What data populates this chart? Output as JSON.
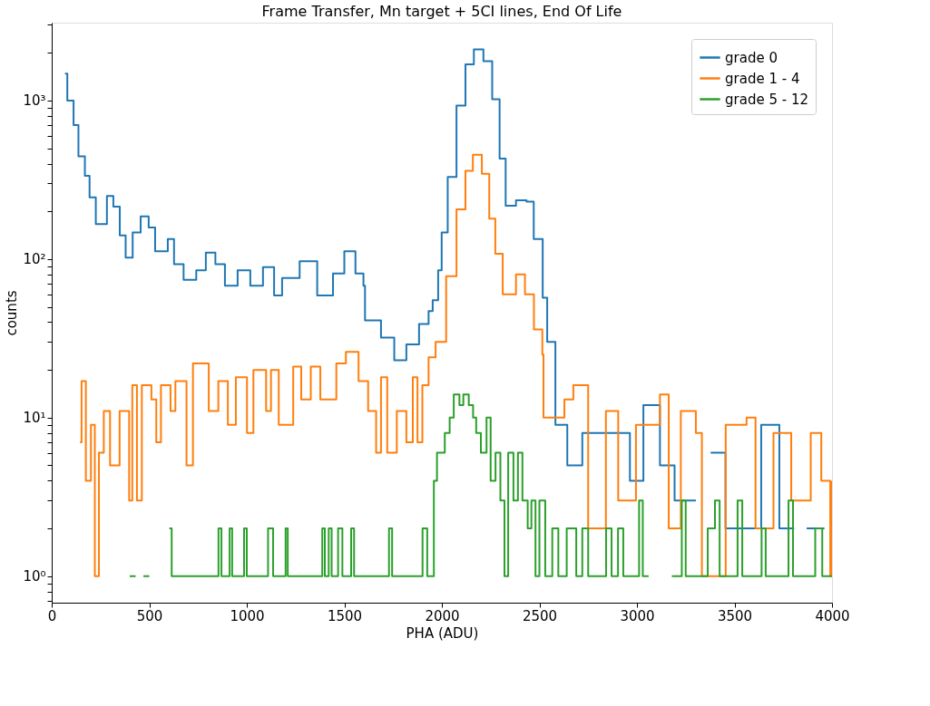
{
  "chart_data": {
    "type": "step",
    "title": "Frame Transfer, Mn target + 5CI lines, End Of Life",
    "xlabel": "PHA (ADU)",
    "ylabel": "counts",
    "log": "y",
    "grid": false,
    "legend": "top right",
    "line_style": "solid",
    "marker": "none",
    "xlim": [
      0,
      4000
    ],
    "xticks": [
      0,
      500,
      {
        "value": 1000,
        "label": "1000"
      },
      {
        "value": 1500,
        "label": "1500"
      },
      {
        "value": 2000,
        "label": "2000"
      },
      {
        "value": 2500,
        "label": "2500"
      },
      {
        "value": 3000,
        "label": "3000"
      },
      {
        "value": 3500,
        "label": "3500"
      },
      {
        "value": 4000,
        "label": "4000"
      }
    ],
    "ylim": [
      0.68,
      3100
    ],
    "yticks": [
      {
        "value": 0.7,
        "label": null
      },
      {
        "value": 0.8,
        "label": null
      },
      {
        "value": 0.9,
        "label": null
      },
      {
        "value": 1,
        "label": "10⁰"
      },
      {
        "value": 2,
        "label": null
      },
      {
        "value": 3,
        "label": null
      },
      {
        "value": 4,
        "label": null
      },
      {
        "value": 5,
        "label": null
      },
      {
        "value": 6,
        "label": null
      },
      {
        "value": 7,
        "label": null
      },
      {
        "value": 8,
        "label": null
      },
      {
        "value": 9,
        "label": null
      },
      {
        "value": 10,
        "label": "10¹"
      },
      {
        "value": 20,
        "label": null
      },
      {
        "value": 30,
        "label": null
      },
      {
        "value": 40,
        "label": null
      },
      {
        "value": 50,
        "label": null
      },
      {
        "value": 60,
        "label": null
      },
      {
        "value": 70,
        "label": null
      },
      {
        "value": 80,
        "label": null
      },
      {
        "value": 90,
        "label": null
      },
      {
        "value": 100,
        "label": "10²"
      },
      {
        "value": 200,
        "label": null
      },
      {
        "value": 300,
        "label": null
      },
      {
        "value": 400,
        "label": null
      },
      {
        "value": 500,
        "label": null
      },
      {
        "value": 600,
        "label": null
      },
      {
        "value": 700,
        "label": null
      },
      {
        "value": 800,
        "label": null
      },
      {
        "value": 900,
        "label": null
      },
      {
        "value": 1000,
        "label": "10³"
      },
      {
        "value": 2000,
        "label": null
      },
      {
        "value": 3000,
        "label": null
      }
    ],
    "series": [
      {
        "name": "grade 0",
        "color": "#1f77b4",
        "x": [
          68,
          80,
          112,
          137,
          170,
          194,
          226,
          283,
          316,
          349,
          379,
          415,
          456,
          497,
          530,
          595,
          627,
          676,
          741,
          790,
          839,
          888,
          953,
          1018,
          1083,
          1140,
          1181,
          1271,
          1361,
          1442,
          1500,
          1557,
          1598,
          1606,
          1688,
          1756,
          1818,
          1883,
          1932,
          1953,
          1981,
          1999,
          2030,
          2075,
          2121,
          2164,
          2213,
          2258,
          2296,
          2327,
          2380,
          2434,
          2471,
          2517,
          2540,
          2582,
          2643,
          2720,
          2964,
          3033,
          3118,
          3193,
          3302,
          3378,
          3454,
          3637,
          3730,
          3806,
          3870,
          3961
        ],
        "values": [
          1480,
          1000,
          700,
          445,
          335,
          245,
          166,
          250,
          214,
          141,
          102,
          147,
          186,
          158,
          112,
          134,
          93,
          74,
          85,
          110,
          93,
          68,
          85,
          68,
          89,
          59,
          76,
          97,
          59,
          81,
          112,
          81,
          68,
          41,
          32,
          23,
          29,
          39,
          47,
          55,
          85,
          147,
          330,
          930,
          1690,
          2100,
          1770,
          1020,
          430,
          217,
          235,
          230,
          134,
          57,
          30,
          9,
          5,
          8,
          4,
          12,
          5,
          3,
          null,
          6,
          2,
          9,
          2,
          null,
          2,
          2
        ]
      },
      {
        "name": "grade 1 - 4",
        "color": "#ff7f0e",
        "x": [
          145,
          153,
          175,
          201,
          221,
          242,
          267,
          299,
          348,
          397,
          413,
          437,
          462,
          511,
          536,
          560,
          609,
          634,
          691,
          724,
          756,
          805,
          854,
          903,
          944,
          1001,
          1034,
          1099,
          1124,
          1164,
          1238,
          1279,
          1328,
          1377,
          1459,
          1508,
          1573,
          1622,
          1663,
          1688,
          1720,
          1769,
          1818,
          1851,
          1875,
          1900,
          1932,
          1968,
          2022,
          2075,
          2121,
          2159,
          2205,
          2243,
          2274,
          2312,
          2380,
          2426,
          2472,
          2515,
          2521,
          2628,
          2674,
          2750,
          2841,
          2904,
          2995,
          3118,
          3163,
          3225,
          3302,
          3333,
          3455,
          3562,
          3608,
          3700,
          3791,
          3891,
          3945,
          3991,
          4000
        ],
        "values": [
          7,
          17,
          4,
          9,
          1,
          6,
          11,
          5,
          11,
          3,
          16,
          3,
          16,
          13,
          7,
          16,
          11,
          17,
          5,
          22,
          22,
          11,
          17,
          9,
          18,
          8,
          20,
          11,
          20,
          9,
          21,
          13,
          21,
          13,
          22,
          26,
          17,
          11,
          6,
          18,
          6,
          11,
          7,
          18,
          7,
          16,
          24,
          30,
          78,
          206,
          360,
          455,
          345,
          180,
          108,
          60,
          80,
          60,
          36,
          25,
          10,
          13,
          16,
          2,
          11,
          3,
          9,
          14,
          2,
          11,
          8,
          1,
          9,
          10,
          2,
          8,
          3,
          8,
          4,
          1,
          4
        ]
      },
      {
        "name": "grade 5 - 12",
        "color": "#2ca02c",
        "x": [
          400,
          430,
          470,
          500,
          603,
          615,
          855,
          870,
          912,
          925,
          986,
          1000,
          1109,
          1135,
          1199,
          1210,
          1387,
          1400,
          1420,
          1435,
          1468,
          1490,
          1535,
          1550,
          1729,
          1745,
          1901,
          1925,
          1959,
          1975,
          2015,
          2040,
          2061,
          2090,
          2110,
          2138,
          2160,
          2176,
          2200,
          2229,
          2250,
          2275,
          2300,
          2321,
          2340,
          2367,
          2390,
          2413,
          2440,
          2459,
          2480,
          2500,
          2530,
          2566,
          2597,
          2640,
          2689,
          2720,
          2750,
          2842,
          2870,
          2903,
          2930,
          3011,
          3030,
          3060,
          3179,
          3230,
          3250,
          3363,
          3400,
          3424,
          3516,
          3540,
          3639,
          3660,
          3777,
          3800,
          3914,
          3950,
          4000
        ],
        "values": [
          1,
          null,
          1,
          null,
          2,
          1,
          2,
          1,
          2,
          1,
          2,
          1,
          2,
          1,
          2,
          1,
          2,
          1,
          2,
          1,
          2,
          1,
          2,
          1,
          2,
          1,
          2,
          1,
          4,
          6,
          8,
          10,
          14,
          12,
          14,
          12,
          10,
          8,
          6,
          10,
          4,
          6,
          3,
          1,
          6,
          3,
          6,
          3,
          2,
          3,
          1,
          3,
          1,
          2,
          1,
          2,
          1,
          2,
          1,
          2,
          1,
          2,
          1,
          3,
          1,
          null,
          1,
          3,
          1,
          2,
          3,
          1,
          3,
          1,
          2,
          1,
          3,
          1,
          2,
          1,
          1
        ]
      }
    ]
  }
}
